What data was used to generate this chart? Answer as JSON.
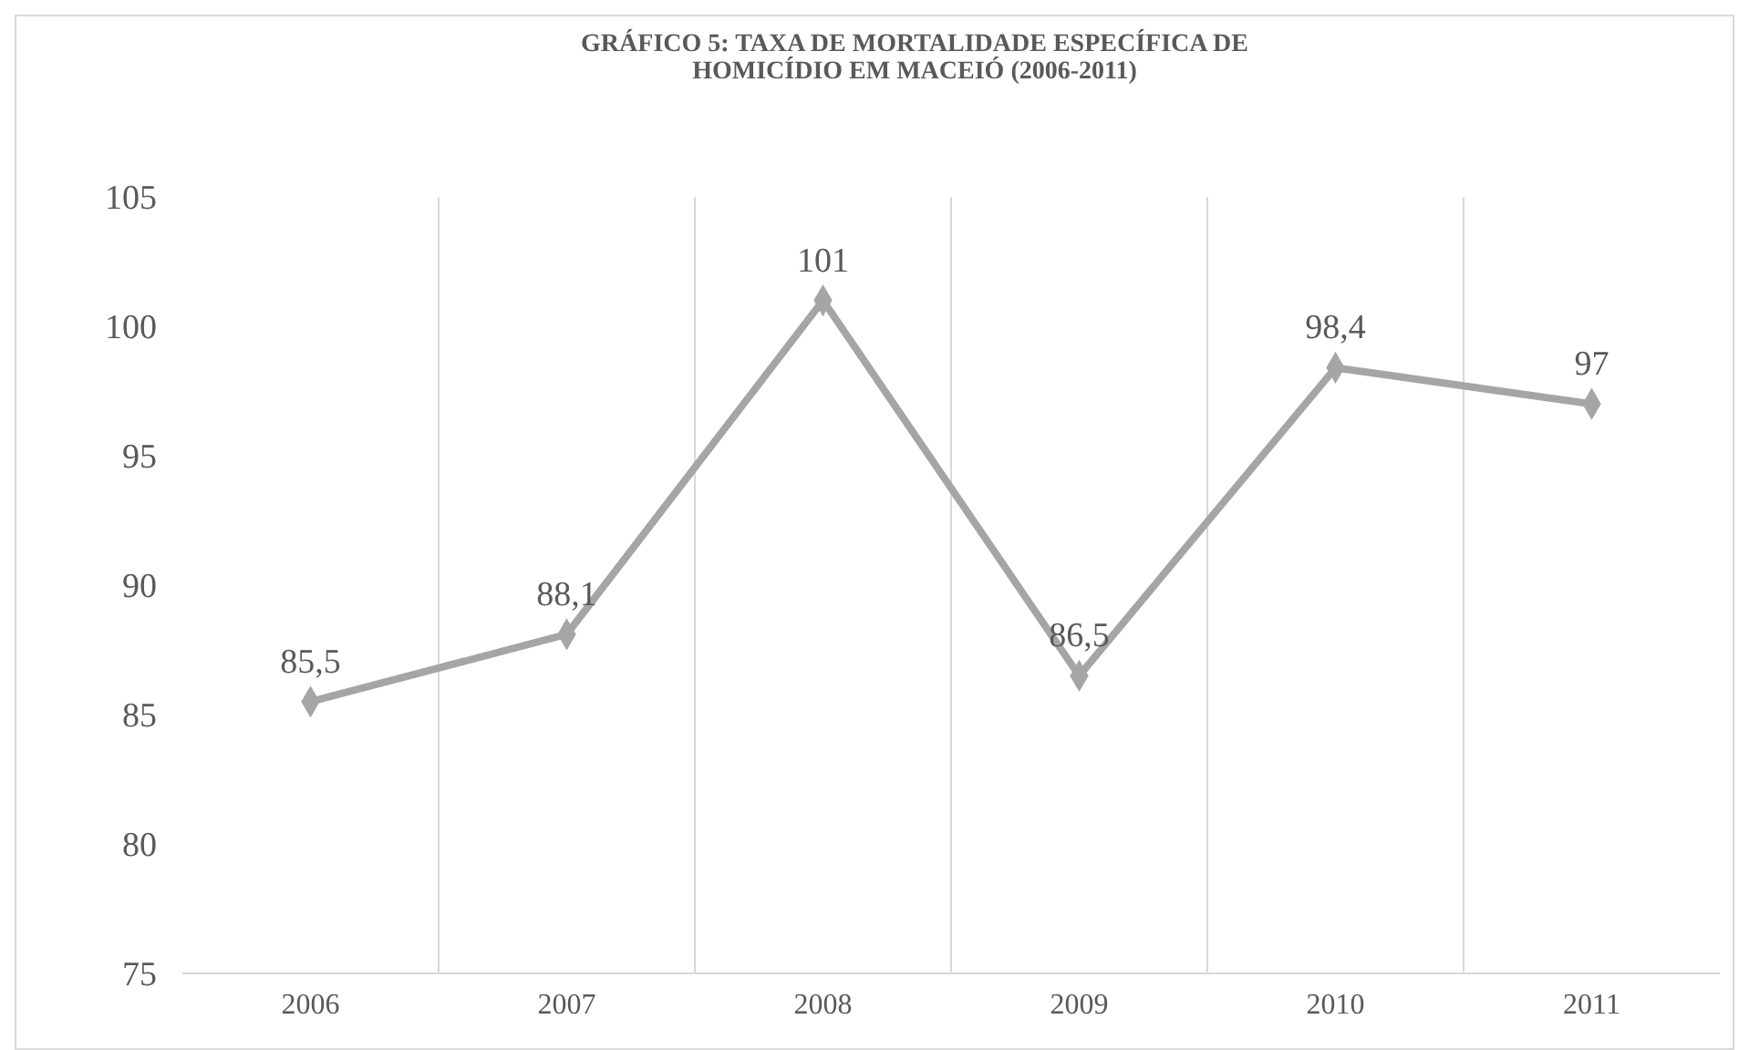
{
  "chart_data": {
    "type": "line",
    "title": "GRÁFICO 5: TAXA DE MORTALIDADE ESPECÍFICA DE HOMICÍDIO EM MACEIÓ (2006-2011)",
    "categories": [
      "2006",
      "2007",
      "2008",
      "2009",
      "2010",
      "2011"
    ],
    "series": [
      {
        "color": "#a5a5a5",
        "values": [
          85.5,
          88.1,
          101,
          86.5,
          98.4,
          97
        ],
        "value_labels": [
          "85,5",
          "88,1",
          "101",
          "86,5",
          "98,4",
          "97"
        ]
      }
    ],
    "ylim": [
      75,
      105
    ],
    "yticks": [
      75,
      80,
      85,
      90,
      95,
      100,
      105
    ],
    "grid": "x",
    "marker": "diamond",
    "line_style": "solid"
  }
}
